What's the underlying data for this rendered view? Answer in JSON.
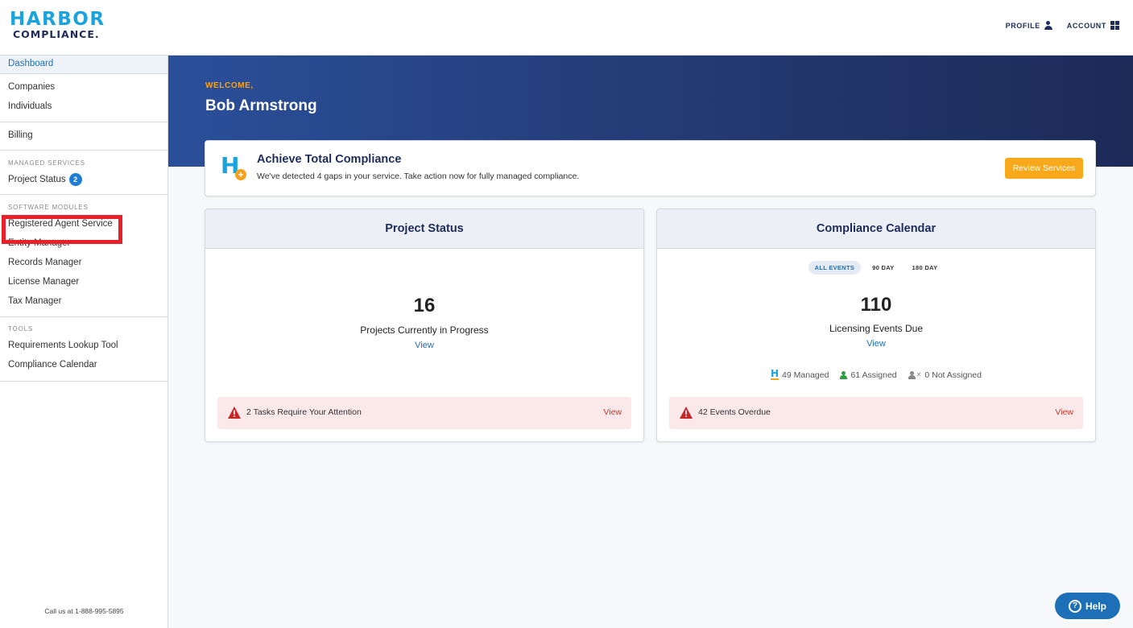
{
  "header": {
    "logo_line1": "HARBOR",
    "logo_line2": "COMPLIANCE.",
    "profile_label": "PROFILE",
    "account_label": "ACCOUNT"
  },
  "sidebar": {
    "dashboard": "Dashboard",
    "companies": "Companies",
    "individuals": "Individuals",
    "billing": "Billing",
    "managed_services_heading": "MANAGED SERVICES",
    "project_status": "Project Status",
    "project_status_badge": "2",
    "software_modules_heading": "SOFTWARE MODULES",
    "registered_agent": "Registered Agent Service",
    "entity_manager": "Entity Manager",
    "records_manager": "Records Manager",
    "license_manager": "License Manager",
    "tax_manager": "Tax Manager",
    "tools_heading": "TOOLS",
    "requirements_lookup": "Requirements Lookup Tool",
    "compliance_calendar": "Compliance Calendar",
    "footer": "Call us at 1-888-995-5895"
  },
  "hero": {
    "welcome": "WELCOME,",
    "username": "Bob Armstrong"
  },
  "banner": {
    "title": "Achieve Total Compliance",
    "text": "We've detected 4 gaps in your service. Take action now for fully managed compliance.",
    "button": "Review Services",
    "icon_letter": "H",
    "icon_plus": "+"
  },
  "project_card": {
    "title": "Project Status",
    "count": "16",
    "label": "Projects Currently in Progress",
    "view": "View",
    "alert_text": "2 Tasks Require Your Attention",
    "alert_view": "View"
  },
  "calendar_card": {
    "title": "Compliance Calendar",
    "filters": [
      "ALL EVENTS",
      "90 DAY",
      "180 DAY"
    ],
    "count": "110",
    "label": "Licensing Events Due",
    "view": "View",
    "managed": "49 Managed",
    "assigned": "61 Assigned",
    "not_assigned": "0 Not Assigned",
    "alert_text": "42 Events Overdue",
    "alert_view": "View"
  },
  "help": {
    "label": "Help",
    "icon": "?"
  },
  "colors": {
    "brand_blue": "#1aa3dd",
    "brand_navy": "#1d2c5a",
    "brand_orange": "#f4a21d",
    "link_blue": "#1d6fb8",
    "alert_red": "#c0392b",
    "highlight_red": "#e8202a"
  }
}
